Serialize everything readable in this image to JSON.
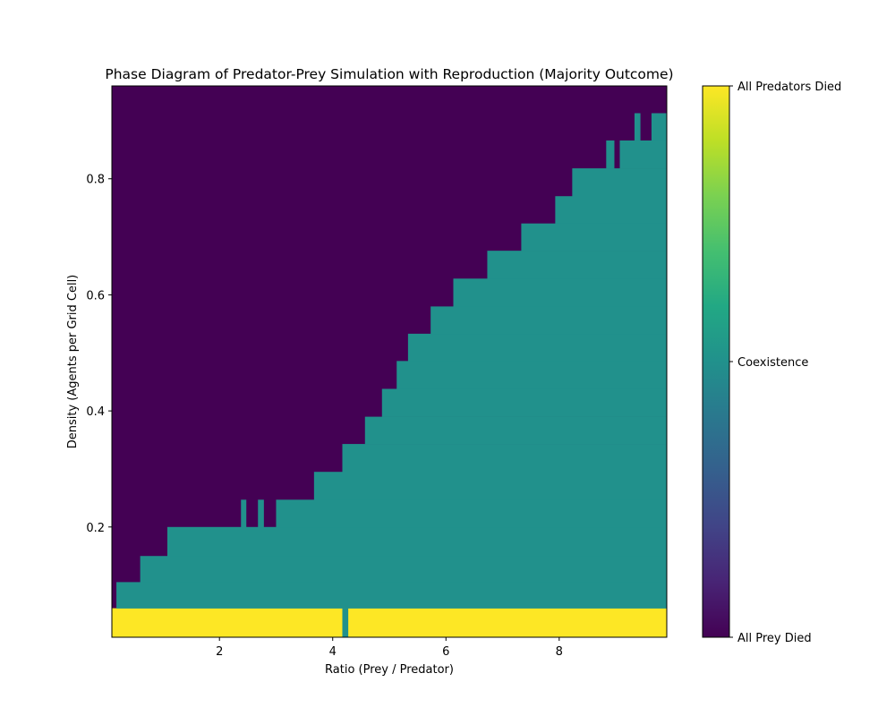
{
  "chart_data": {
    "type": "heatmap",
    "title": "Phase Diagram of Predator-Prey Simulation with Reproduction (Majority Outcome)",
    "xlabel": "Ratio (Prey / Predator)",
    "ylabel": "Density (Agents per Grid Cell)",
    "xlim": [
      0.1,
      9.9
    ],
    "ylim": [
      0.01,
      0.96
    ],
    "x_ticks": [
      2,
      4,
      6,
      8
    ],
    "y_ticks": [
      0.2,
      0.4,
      0.6,
      0.8
    ],
    "x_tick_labels": [
      "2",
      "4",
      "6",
      "8"
    ],
    "y_tick_labels": [
      "0.2",
      "0.4",
      "0.6",
      "0.8"
    ],
    "grid": false,
    "colormap": "viridis",
    "outcome_codes": {
      "all_prey_died": 0,
      "coexistence": 1,
      "all_predators_died": 2
    },
    "colorbar": {
      "range": [
        0,
        2
      ],
      "ticks": [
        0,
        1,
        2
      ],
      "labels": [
        "All Prey Died",
        "Coexistence",
        "All Predators Died"
      ]
    },
    "colors": {
      "all_prey_died": "#440154",
      "coexistence": "#21918c",
      "all_predators_died": "#fde725"
    },
    "regions": [
      {
        "outcome": 0,
        "x": [
          0.1,
          9.9
        ],
        "y": [
          0.06,
          0.96
        ]
      },
      {
        "outcome": 2,
        "x": [
          0.1,
          9.9
        ],
        "y": [
          0.01,
          0.06
        ]
      },
      {
        "outcome": 1,
        "x": [
          4.17,
          4.27
        ],
        "y": [
          0.01,
          0.06
        ]
      },
      {
        "outcome": 1,
        "x": [
          0.18,
          9.9
        ],
        "y": [
          0.06,
          0.105
        ]
      },
      {
        "outcome": 1,
        "x": [
          0.6,
          9.9
        ],
        "y": [
          0.105,
          0.15
        ]
      },
      {
        "outcome": 1,
        "x": [
          1.08,
          9.9
        ],
        "y": [
          0.15,
          0.2
        ]
      },
      {
        "outcome": 1,
        "x": [
          3.0,
          9.9
        ],
        "y": [
          0.2,
          0.247
        ]
      },
      {
        "outcome": 1,
        "x": [
          2.38,
          2.47
        ],
        "y": [
          0.2,
          0.247
        ]
      },
      {
        "outcome": 1,
        "x": [
          2.68,
          2.78
        ],
        "y": [
          0.2,
          0.247
        ]
      },
      {
        "outcome": 1,
        "x": [
          3.67,
          9.9
        ],
        "y": [
          0.247,
          0.295
        ]
      },
      {
        "outcome": 1,
        "x": [
          4.17,
          9.9
        ],
        "y": [
          0.295,
          0.343
        ]
      },
      {
        "outcome": 1,
        "x": [
          4.57,
          9.9
        ],
        "y": [
          0.343,
          0.39
        ]
      },
      {
        "outcome": 1,
        "x": [
          4.87,
          9.9
        ],
        "y": [
          0.39,
          0.438
        ]
      },
      {
        "outcome": 1,
        "x": [
          5.13,
          9.9
        ],
        "y": [
          0.438,
          0.486
        ]
      },
      {
        "outcome": 1,
        "x": [
          5.33,
          9.9
        ],
        "y": [
          0.486,
          0.533
        ]
      },
      {
        "outcome": 1,
        "x": [
          5.73,
          9.9
        ],
        "y": [
          0.533,
          0.58
        ]
      },
      {
        "outcome": 1,
        "x": [
          6.13,
          9.9
        ],
        "y": [
          0.58,
          0.628
        ]
      },
      {
        "outcome": 1,
        "x": [
          6.73,
          9.9
        ],
        "y": [
          0.628,
          0.676
        ]
      },
      {
        "outcome": 1,
        "x": [
          7.33,
          9.9
        ],
        "y": [
          0.676,
          0.723
        ]
      },
      {
        "outcome": 1,
        "x": [
          7.93,
          9.9
        ],
        "y": [
          0.723,
          0.77
        ]
      },
      {
        "outcome": 1,
        "x": [
          8.23,
          9.9
        ],
        "y": [
          0.77,
          0.818
        ]
      },
      {
        "outcome": 1,
        "x": [
          8.83,
          8.97
        ],
        "y": [
          0.818,
          0.866
        ]
      },
      {
        "outcome": 1,
        "x": [
          9.07,
          9.9
        ],
        "y": [
          0.818,
          0.866
        ]
      },
      {
        "outcome": 1,
        "x": [
          9.33,
          9.43
        ],
        "y": [
          0.866,
          0.913
        ]
      },
      {
        "outcome": 1,
        "x": [
          9.63,
          9.9
        ],
        "y": [
          0.866,
          0.913
        ]
      }
    ]
  }
}
